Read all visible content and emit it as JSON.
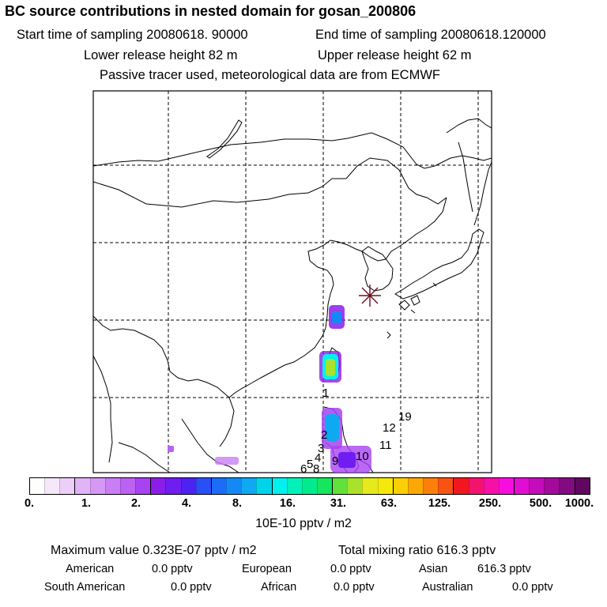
{
  "header": {
    "title": "BC  source contributions in nested domain for gosan_200806",
    "start_time": "Start time of sampling 20080618. 90000",
    "end_time": "End time of sampling 20080618.120000",
    "lower_height": "Lower release height   82 m",
    "upper_height": "Upper release height   62 m",
    "note": "Passive tracer used, meteorological data are from ECMWF"
  },
  "map": {
    "station_marker": "receptor-star",
    "labels": [
      "1",
      "2",
      "3",
      "4",
      "5",
      "6",
      "8",
      "9",
      "10",
      "11",
      "12",
      "19"
    ]
  },
  "colorbar": {
    "colors": [
      "#ffffff",
      "#f6e8fb",
      "#eccff8",
      "#e0b4f6",
      "#d599f5",
      "#c97ef4",
      "#bc62f3",
      "#a743f2",
      "#8b1de9",
      "#6f1df0",
      "#4d22f3",
      "#2850f6",
      "#1c6cf8",
      "#1489f5",
      "#0ea9f0",
      "#00d4ea",
      "#00f1ee",
      "#00f2b8",
      "#00ec8c",
      "#16e55e",
      "#62e13a",
      "#a9e22a",
      "#e6e91a",
      "#f7e80c",
      "#fbcf05",
      "#fba804",
      "#fb7f09",
      "#f85312",
      "#f2171f",
      "#f3136f",
      "#f610a8",
      "#f70edf",
      "#e00ed2",
      "#c50cba",
      "#a30a9c",
      "#830a80",
      "#600860"
    ],
    "ticks": [
      "0.",
      "1.",
      "2.",
      "4.",
      "8.",
      "16.",
      "31.",
      "63.",
      "125.",
      "250.",
      "500.",
      "1000."
    ],
    "units": "10E-10 pptv / m2"
  },
  "stats": {
    "max_value": "Maximum value  0.323E-07 pptv / m2",
    "total_mixing": "Total mixing ratio     616.3 pptv"
  },
  "regions": {
    "american_label": "American",
    "american_value": "0.0 pptv",
    "european_label": "European",
    "european_value": "0.0 pptv",
    "asian_label": "Asian",
    "asian_value": "616.3 pptv",
    "south_american_label": "South American",
    "south_american_value": "0.0 pptv",
    "african_label": "African",
    "african_value": "0.0 pptv",
    "australian_label": "Australian",
    "australian_value": "0.0 pptv"
  }
}
